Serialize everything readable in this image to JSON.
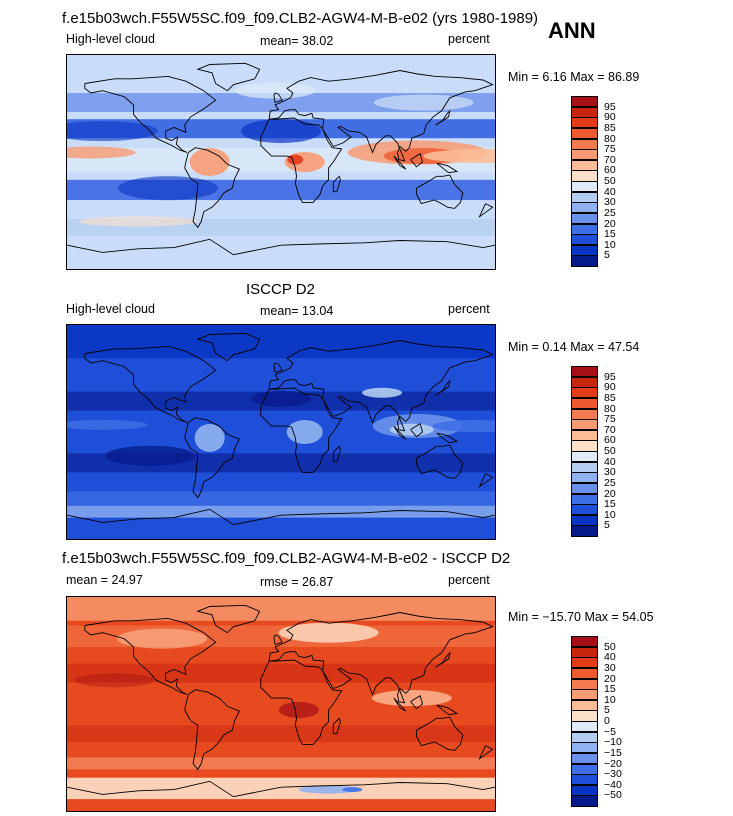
{
  "header": {
    "case_title": "f.e15b03wch.F55W5SC.f09_f09.CLB2-AGW4-M-B-e02 (yrs 1980-1989)",
    "season": "ANN"
  },
  "panels": [
    {
      "id": "model",
      "title": "",
      "left_label": "High-level cloud",
      "center_label": "mean=  38.02",
      "right_label": "percent",
      "minmax": "Min =   6.16 Max =  86.89",
      "colorbar_labels": [
        "95",
        "90",
        "85",
        "80",
        "75",
        "70",
        "60",
        "50",
        "40",
        "30",
        "25",
        "20",
        "15",
        "10",
        "5"
      ],
      "colorbar_colors": [
        "#a50f15",
        "#c8250f",
        "#e13b17",
        "#ee5a30",
        "#f47a4f",
        "#f89b72",
        "#fbbc98",
        "#fde0c8",
        "#deebf7",
        "#b2cdf0",
        "#8fb2f0",
        "#6a92ec",
        "#3f6fe6",
        "#1f4fd8",
        "#0a35c4",
        "#061a8c"
      ],
      "base_color": "#c9dcf9"
    },
    {
      "id": "obs",
      "title": "ISCCP D2",
      "left_label": "High-level cloud",
      "center_label": "mean=  13.04",
      "right_label": "percent",
      "minmax": "Min =   0.14 Max =  47.54",
      "colorbar_labels": [
        "95",
        "90",
        "85",
        "80",
        "75",
        "70",
        "60",
        "50",
        "40",
        "30",
        "25",
        "20",
        "15",
        "10",
        "5"
      ],
      "colorbar_colors": [
        "#a50f15",
        "#c8250f",
        "#e13b17",
        "#ee5a30",
        "#f47a4f",
        "#f89b72",
        "#fbbc98",
        "#fde0c8",
        "#deebf7",
        "#b2cdf0",
        "#8fb2f0",
        "#6a92ec",
        "#3f6fe6",
        "#1f4fd8",
        "#0a35c4",
        "#061a8c"
      ],
      "base_color": "#1f4fd8"
    },
    {
      "id": "diff",
      "title": "f.e15b03wch.F55W5SC.f09_f09.CLB2-AGW4-M-B-e02 - ISCCP D2",
      "left_label": "mean =  24.97",
      "center_label": "rmse =  26.87",
      "right_label": "percent",
      "minmax": "Min = −15.70 Max =  54.05",
      "colorbar_labels": [
        "50",
        "40",
        "30",
        "20",
        "15",
        "10",
        "5",
        "0",
        "−5",
        "−10",
        "−15",
        "−20",
        "−30",
        "−40",
        "−50"
      ],
      "colorbar_colors": [
        "#a50f15",
        "#c8250f",
        "#e13b17",
        "#ee5a30",
        "#f47a4f",
        "#f89b72",
        "#fbbc98",
        "#fde0c8",
        "#deebf7",
        "#b2cdf0",
        "#8fb2f0",
        "#6a92ec",
        "#3f6fe6",
        "#1f4fd8",
        "#0a35c4",
        "#061a8c"
      ],
      "base_color": "#e84a20"
    }
  ],
  "chart_data": [
    {
      "type": "heatmap",
      "title": "",
      "variable": "High-level cloud",
      "units": "percent",
      "mean": 38.02,
      "min": 6.16,
      "max": 86.89,
      "levels": [
        5,
        10,
        15,
        20,
        25,
        30,
        40,
        50,
        60,
        70,
        75,
        80,
        85,
        90,
        95
      ]
    },
    {
      "type": "heatmap",
      "title": "ISCCP D2",
      "variable": "High-level cloud",
      "units": "percent",
      "mean": 13.04,
      "min": 0.14,
      "max": 47.54,
      "levels": [
        5,
        10,
        15,
        20,
        25,
        30,
        40,
        50,
        60,
        70,
        75,
        80,
        85,
        90,
        95
      ]
    },
    {
      "type": "heatmap",
      "title": "f.e15b03wch.F55W5SC.f09_f09.CLB2-AGW4-M-B-e02 - ISCCP D2",
      "units": "percent",
      "mean": 24.97,
      "rmse": 26.87,
      "min": -15.7,
      "max": 54.05,
      "levels": [
        -50,
        -40,
        -30,
        -20,
        -15,
        -10,
        -5,
        0,
        5,
        10,
        15,
        20,
        30,
        40,
        50
      ]
    }
  ]
}
